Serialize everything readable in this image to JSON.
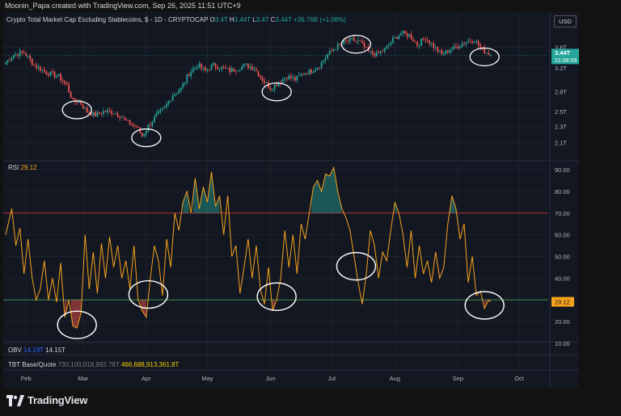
{
  "header": {
    "attribution": "Moonin_Papa created with TradingView.com, Sep 26, 2025 11:51 UTC+9"
  },
  "ticker": {
    "name": "Crypto Total Market Cap Excluding Stablecoins, $ - 1D - CRYPTOCAP",
    "o_label": "O",
    "o_value": "3.4T",
    "h_label": "H",
    "h_value": "3.44T",
    "l_label": "L",
    "l_value": "3.4T",
    "c_label": "C",
    "c_value": "3.44T",
    "change": "+36.76B (+1.08%)"
  },
  "currency_button": "USD",
  "rsi": {
    "label": "RSI",
    "value": "29.12"
  },
  "obv": {
    "label": "OBV",
    "value1": "14.19T",
    "value2": "14.15T"
  },
  "tbt": {
    "label": "TBT Base/Quote",
    "value1": "730,100,018,992.78T",
    "value2": "466,688,913,361.8T"
  },
  "price_badge": {
    "value": "3.44T",
    "countdown": "21:08:59"
  },
  "logo": {
    "text": "TradingView"
  },
  "colors": {
    "up": "#26a69a",
    "down": "#ef5350",
    "rsi_line": "#f7a21b",
    "overbought_line": "#b2302e",
    "oversold_line": "#3a8a50",
    "obv_value": "#2962ff",
    "tbt_value": "#f5d200"
  },
  "chart_data": [
    {
      "type": "candlestick",
      "title": "Crypto Total Market Cap Excluding Stablecoins, $ - 1D - CRYPTOCAP",
      "yscale": "log",
      "ylim": [
        2.0,
        4.1
      ],
      "y_ticks": [
        "3.6T",
        "3.2T",
        "2.8T",
        "2.5T",
        "2.3T",
        "2.1T"
      ],
      "y_tick_values": [
        3.6,
        3.2,
        2.8,
        2.5,
        2.3,
        2.1
      ],
      "x_ticks": [
        "Feb",
        "Mar",
        "Apr",
        "May",
        "Jun",
        "Jul",
        "Aug",
        "Sep",
        "Oct"
      ],
      "x_tick_days": [
        10,
        38,
        69,
        99,
        130,
        160,
        191,
        222,
        252
      ],
      "last_day": 238,
      "close_anchors": [
        [
          0,
          3.3
        ],
        [
          4,
          3.45
        ],
        [
          9,
          3.5
        ],
        [
          14,
          3.25
        ],
        [
          20,
          3.12
        ],
        [
          26,
          3.05
        ],
        [
          30,
          2.9
        ],
        [
          33,
          2.65
        ],
        [
          36,
          2.65
        ],
        [
          40,
          2.5
        ],
        [
          44,
          2.45
        ],
        [
          48,
          2.5
        ],
        [
          52,
          2.5
        ],
        [
          56,
          2.45
        ],
        [
          60,
          2.35
        ],
        [
          64,
          2.3
        ],
        [
          67,
          2.18
        ],
        [
          70,
          2.3
        ],
        [
          74,
          2.45
        ],
        [
          78,
          2.55
        ],
        [
          82,
          2.75
        ],
        [
          86,
          2.85
        ],
        [
          90,
          3.1
        ],
        [
          94,
          3.25
        ],
        [
          98,
          3.15
        ],
        [
          102,
          3.25
        ],
        [
          106,
          3.2
        ],
        [
          110,
          3.15
        ],
        [
          114,
          3.2
        ],
        [
          118,
          3.25
        ],
        [
          122,
          3.2
        ],
        [
          126,
          3.0
        ],
        [
          130,
          2.85
        ],
        [
          134,
          2.95
        ],
        [
          138,
          3.05
        ],
        [
          142,
          3.0
        ],
        [
          146,
          3.1
        ],
        [
          150,
          3.15
        ],
        [
          154,
          3.25
        ],
        [
          158,
          3.45
        ],
        [
          162,
          3.6
        ],
        [
          166,
          3.7
        ],
        [
          170,
          3.75
        ],
        [
          174,
          3.7
        ],
        [
          178,
          3.5
        ],
        [
          182,
          3.45
        ],
        [
          186,
          3.55
        ],
        [
          190,
          3.75
        ],
        [
          194,
          3.9
        ],
        [
          198,
          3.85
        ],
        [
          202,
          3.65
        ],
        [
          206,
          3.8
        ],
        [
          210,
          3.62
        ],
        [
          214,
          3.45
        ],
        [
          218,
          3.55
        ],
        [
          222,
          3.62
        ],
        [
          226,
          3.72
        ],
        [
          230,
          3.75
        ],
        [
          234,
          3.55
        ],
        [
          238,
          3.44
        ]
      ],
      "circled_lows_days": [
        35,
        69,
        133,
        172,
        235
      ]
    },
    {
      "type": "line",
      "title": "RSI",
      "ylim": [
        10,
        90
      ],
      "y_ticks": [
        "90.00",
        "80.00",
        "70.00",
        "60.00",
        "50.00",
        "40.00",
        "30.00",
        "20.00",
        "10.00"
      ],
      "y_tick_values": [
        90,
        80,
        70,
        60,
        50,
        40,
        30,
        20,
        10
      ],
      "bands": {
        "overbought": 70,
        "oversold": 30
      },
      "last_value": 29.12,
      "rsi_anchors": [
        [
          0,
          60
        ],
        [
          3,
          72
        ],
        [
          5,
          55
        ],
        [
          7,
          63
        ],
        [
          9,
          42
        ],
        [
          11,
          58
        ],
        [
          13,
          40
        ],
        [
          15,
          30
        ],
        [
          17,
          35
        ],
        [
          19,
          48
        ],
        [
          21,
          30
        ],
        [
          23,
          40
        ],
        [
          25,
          29
        ],
        [
          27,
          47
        ],
        [
          29,
          22
        ],
        [
          31,
          30
        ],
        [
          33,
          18
        ],
        [
          35,
          17
        ],
        [
          37,
          24
        ],
        [
          39,
          60
        ],
        [
          41,
          35
        ],
        [
          43,
          52
        ],
        [
          45,
          33
        ],
        [
          47,
          56
        ],
        [
          49,
          40
        ],
        [
          51,
          59
        ],
        [
          53,
          45
        ],
        [
          55,
          55
        ],
        [
          57,
          40
        ],
        [
          59,
          48
        ],
        [
          61,
          35
        ],
        [
          63,
          55
        ],
        [
          65,
          30
        ],
        [
          67,
          25
        ],
        [
          69,
          22
        ],
        [
          71,
          40
        ],
        [
          73,
          55
        ],
        [
          75,
          48
        ],
        [
          77,
          32
        ],
        [
          79,
          58
        ],
        [
          81,
          45
        ],
        [
          83,
          70
        ],
        [
          85,
          62
        ],
        [
          87,
          75
        ],
        [
          89,
          80
        ],
        [
          91,
          70
        ],
        [
          93,
          86
        ],
        [
          95,
          72
        ],
        [
          97,
          82
        ],
        [
          99,
          75
        ],
        [
          101,
          89
        ],
        [
          103,
          73
        ],
        [
          105,
          78
        ],
        [
          107,
          60
        ],
        [
          109,
          78
        ],
        [
          111,
          50
        ],
        [
          113,
          55
        ],
        [
          115,
          33
        ],
        [
          117,
          45
        ],
        [
          119,
          58
        ],
        [
          121,
          40
        ],
        [
          123,
          55
        ],
        [
          125,
          35
        ],
        [
          127,
          28
        ],
        [
          129,
          45
        ],
        [
          131,
          25
        ],
        [
          133,
          30
        ],
        [
          135,
          40
        ],
        [
          137,
          62
        ],
        [
          139,
          45
        ],
        [
          141,
          60
        ],
        [
          143,
          42
        ],
        [
          145,
          65
        ],
        [
          147,
          58
        ],
        [
          149,
          70
        ],
        [
          151,
          82
        ],
        [
          153,
          85
        ],
        [
          155,
          80
        ],
        [
          157,
          88
        ],
        [
          159,
          87
        ],
        [
          161,
          91
        ],
        [
          163,
          80
        ],
        [
          165,
          72
        ],
        [
          167,
          68
        ],
        [
          169,
          62
        ],
        [
          171,
          50
        ],
        [
          173,
          38
        ],
        [
          175,
          28
        ],
        [
          177,
          42
        ],
        [
          179,
          62
        ],
        [
          181,
          55
        ],
        [
          183,
          40
        ],
        [
          185,
          52
        ],
        [
          187,
          48
        ],
        [
          189,
          62
        ],
        [
          191,
          75
        ],
        [
          193,
          70
        ],
        [
          195,
          60
        ],
        [
          197,
          45
        ],
        [
          199,
          62
        ],
        [
          201,
          40
        ],
        [
          203,
          55
        ],
        [
          205,
          42
        ],
        [
          207,
          48
        ],
        [
          209,
          38
        ],
        [
          211,
          52
        ],
        [
          213,
          40
        ],
        [
          215,
          45
        ],
        [
          217,
          65
        ],
        [
          219,
          78
        ],
        [
          221,
          72
        ],
        [
          223,
          58
        ],
        [
          225,
          65
        ],
        [
          227,
          38
        ],
        [
          229,
          50
        ],
        [
          231,
          32
        ],
        [
          233,
          34
        ],
        [
          235,
          26
        ],
        [
          237,
          30
        ],
        [
          238,
          29.12
        ]
      ],
      "circled_lows_days": [
        35,
        70,
        133,
        172,
        235
      ]
    }
  ]
}
